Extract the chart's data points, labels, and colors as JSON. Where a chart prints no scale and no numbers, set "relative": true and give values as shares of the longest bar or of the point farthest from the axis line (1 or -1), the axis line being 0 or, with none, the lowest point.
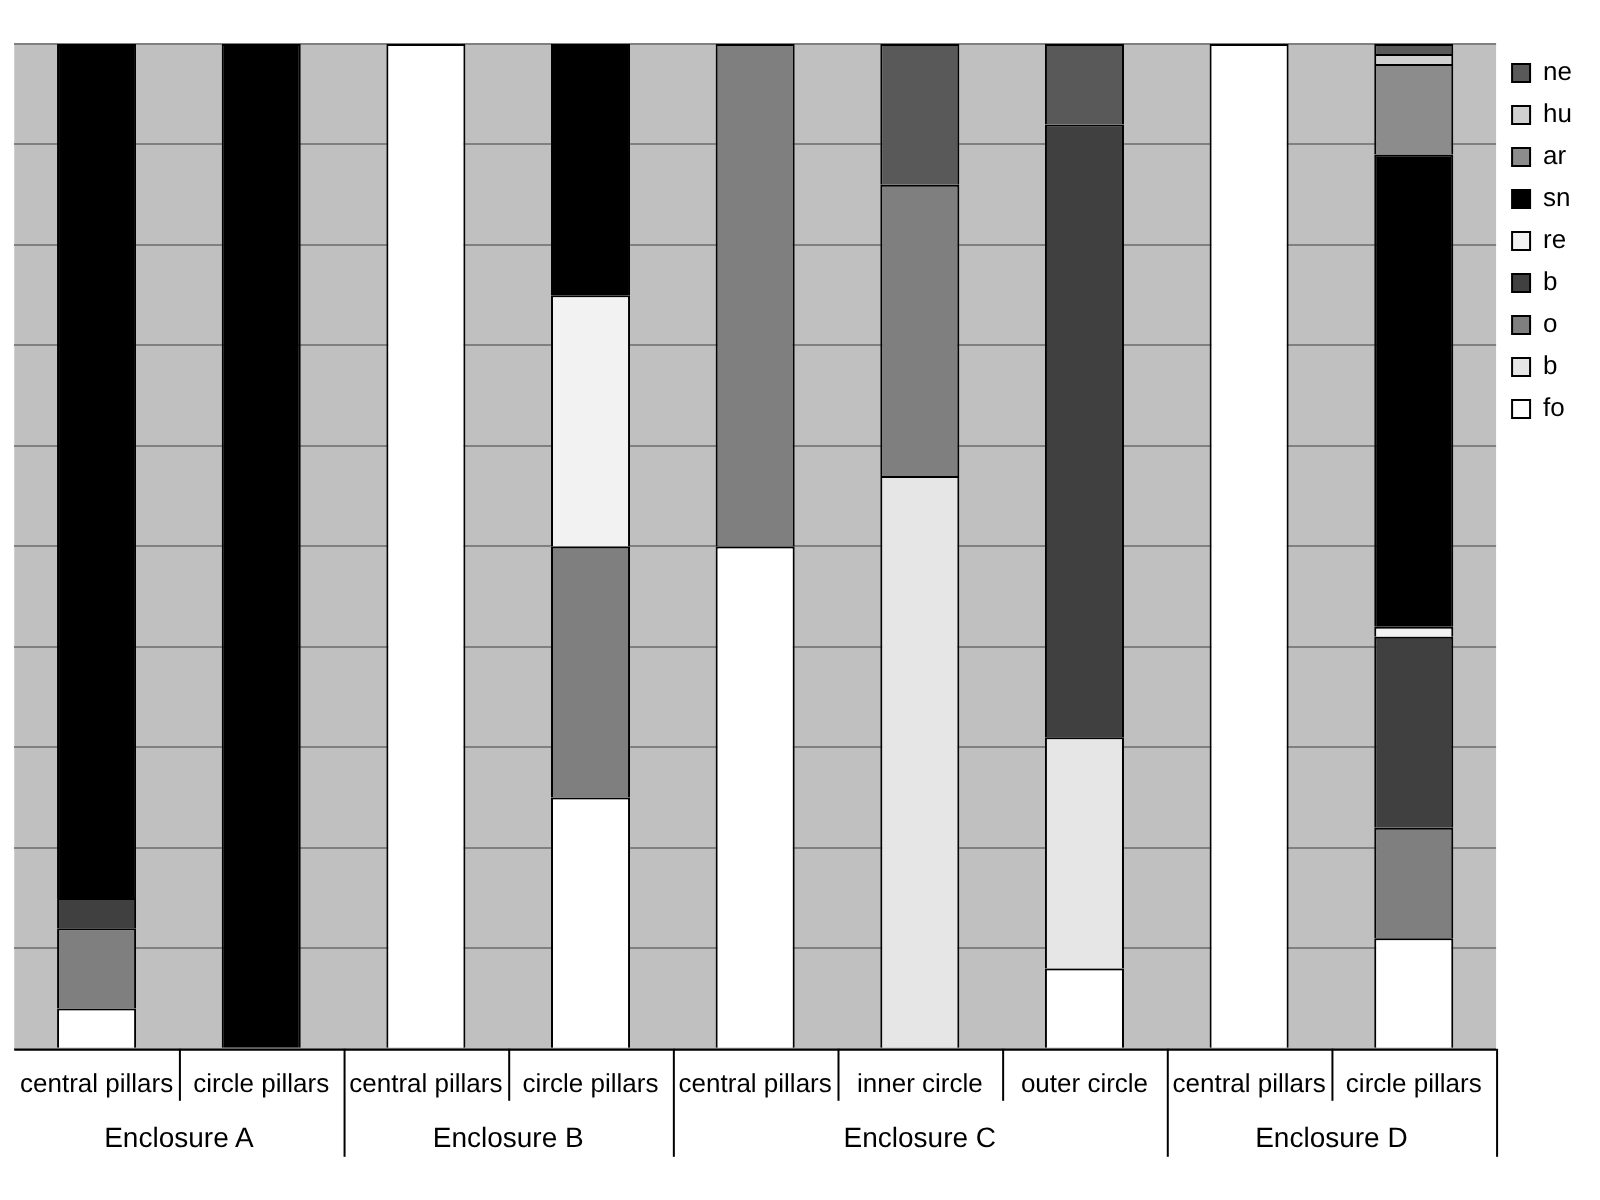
{
  "chart_data": {
    "type": "bar",
    "stacked": true,
    "relative": true,
    "grid": "y",
    "legend": "right",
    "categories": [
      "central pillars",
      "circle pillars",
      "central pillars",
      "circle pillars",
      "central pillars",
      "inner circle",
      "outer circle",
      "central pillars",
      "circle pillars"
    ],
    "annotations": [
      "Enclosure A",
      "Enclosure B",
      "Enclosure C",
      "Enclosure D"
    ],
    "series": [
      {
        "name": "fo",
        "color": "#ffffff",
        "values": [
          0.04,
          0,
          1,
          0.25,
          0.5,
          0,
          0.08,
          1,
          0.11
        ]
      },
      {
        "name": "b",
        "color": "#e6e6e6",
        "values": [
          0,
          0,
          0,
          0,
          0,
          0.57,
          0.23,
          0,
          0
        ]
      },
      {
        "name": "o",
        "color": "#7f7f7f",
        "values": [
          0.08,
          0,
          0,
          0.25,
          0.5,
          0.29,
          0,
          0,
          0.11
        ]
      },
      {
        "name": "b",
        "color": "#404040",
        "values": [
          0.03,
          0,
          0,
          0,
          0,
          0,
          0.61,
          0,
          0.19
        ]
      },
      {
        "name": "re",
        "color": "#f2f2f2",
        "values": [
          0,
          0,
          0,
          0.25,
          0,
          0,
          0,
          0,
          0.01
        ]
      },
      {
        "name": "sn",
        "color": "#000000",
        "values": [
          0.85,
          1,
          0,
          0.25,
          0,
          0,
          0,
          0,
          0.47
        ]
      },
      {
        "name": "ar",
        "color": "#8c8c8c",
        "values": [
          0,
          0,
          0,
          0,
          0,
          0,
          0,
          0,
          0.09
        ]
      },
      {
        "name": "hu",
        "color": "#d0d0d0",
        "values": [
          0,
          0,
          0,
          0,
          0,
          0,
          0,
          0,
          0.01
        ]
      },
      {
        "name": "ne",
        "color": "#595959",
        "values": [
          0,
          0,
          0,
          0,
          0,
          0.14,
          0.08,
          0,
          0.01
        ]
      }
    ]
  }
}
